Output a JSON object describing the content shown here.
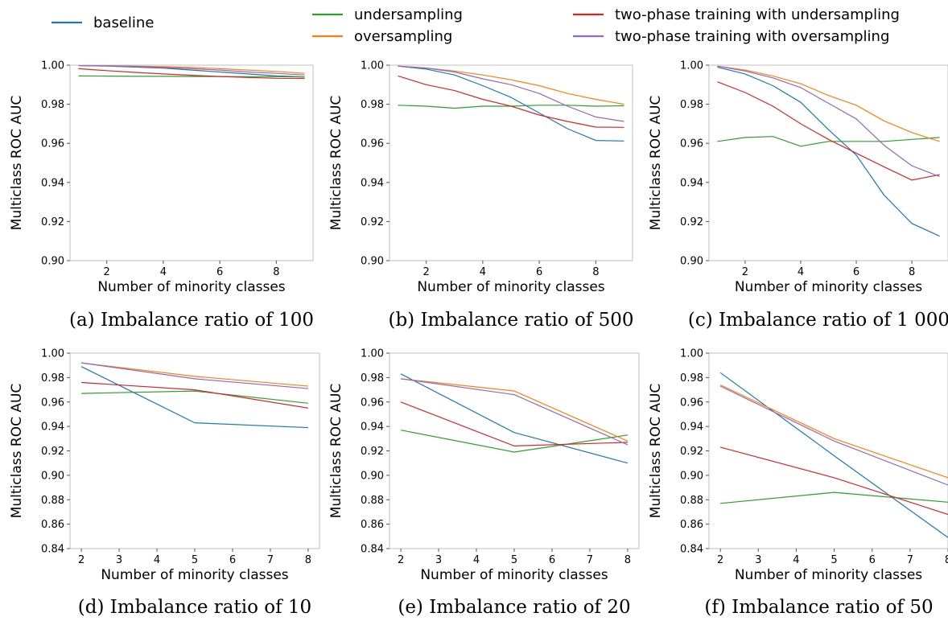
{
  "legend": {
    "entries": [
      {
        "label": "baseline",
        "color": "#1f77b4"
      },
      {
        "label": "undersampling",
        "color": "#2ca02c"
      },
      {
        "label": "oversampling",
        "color": "#ff7f0e"
      },
      {
        "label": "two-phase training with undersampling",
        "color": "#d62728"
      },
      {
        "label": "two-phase training with oversampling",
        "color": "#9467bd"
      }
    ]
  },
  "chart_data": [
    {
      "type": "line",
      "caption": "(a) Imbalance ratio of 100",
      "xlabel": "Number of minority classes",
      "ylabel": "Multiclass ROC AUC",
      "xlim": [
        0.7,
        9.3
      ],
      "ylim": [
        0.9,
        1.0
      ],
      "xticks": [
        2,
        4,
        6,
        8
      ],
      "xtick_labels": [
        "2",
        "4",
        "6",
        "8"
      ],
      "yticks": [
        0.9,
        0.92,
        0.94,
        0.96,
        0.98,
        1.0
      ],
      "ytick_labels": [
        "0.90",
        "0.92",
        "0.94",
        "0.96",
        "0.98",
        "1.00"
      ],
      "x": [
        1,
        2,
        3,
        4,
        5,
        6,
        7,
        8,
        9
      ],
      "series": [
        {
          "name": "baseline",
          "values": [
            0.9998,
            0.9995,
            0.999,
            0.9985,
            0.9975,
            0.9965,
            0.9955,
            0.9945,
            0.994
          ]
        },
        {
          "name": "undersampling",
          "values": [
            0.9945,
            0.9944,
            0.9943,
            0.9943,
            0.9942,
            0.9942,
            0.9941,
            0.9941,
            0.994
          ]
        },
        {
          "name": "oversampling",
          "values": [
            0.9998,
            0.9997,
            0.9995,
            0.9992,
            0.9988,
            0.9982,
            0.9975,
            0.9968,
            0.9958
          ]
        },
        {
          "name": "two-phase training with undersampling",
          "values": [
            0.9982,
            0.9972,
            0.9963,
            0.9955,
            0.9948,
            0.9942,
            0.9937,
            0.9933,
            0.9932
          ]
        },
        {
          "name": "two-phase training with oversampling",
          "values": [
            0.9998,
            0.9996,
            0.9993,
            0.9988,
            0.9982,
            0.9975,
            0.9965,
            0.9958,
            0.995
          ]
        }
      ]
    },
    {
      "type": "line",
      "caption": "(b) Imbalance ratio of 500",
      "xlabel": "Number of minority classes",
      "ylabel": "Multiclass ROC AUC",
      "xlim": [
        0.7,
        9.3
      ],
      "ylim": [
        0.9,
        1.0
      ],
      "xticks": [
        2,
        4,
        6,
        8
      ],
      "xtick_labels": [
        "2",
        "4",
        "6",
        "8"
      ],
      "yticks": [
        0.9,
        0.92,
        0.94,
        0.96,
        0.98,
        1.0
      ],
      "ytick_labels": [
        "0.90",
        "0.92",
        "0.94",
        "0.96",
        "0.98",
        "1.00"
      ],
      "x": [
        1,
        2,
        3,
        4,
        5,
        6,
        7,
        8,
        9
      ],
      "series": [
        {
          "name": "baseline",
          "values": [
            0.9995,
            0.998,
            0.995,
            0.9895,
            0.9835,
            0.9755,
            0.9675,
            0.9615,
            0.9612
          ]
        },
        {
          "name": "undersampling",
          "values": [
            0.9795,
            0.979,
            0.978,
            0.979,
            0.979,
            0.9795,
            0.9795,
            0.979,
            0.9792
          ]
        },
        {
          "name": "oversampling",
          "values": [
            0.9995,
            0.9985,
            0.997,
            0.995,
            0.9925,
            0.9895,
            0.9855,
            0.9825,
            0.98
          ]
        },
        {
          "name": "two-phase training with undersampling",
          "values": [
            0.9945,
            0.99,
            0.987,
            0.9825,
            0.979,
            0.9745,
            0.9712,
            0.9683,
            0.9682
          ]
        },
        {
          "name": "two-phase training with oversampling",
          "values": [
            0.9995,
            0.9985,
            0.9965,
            0.993,
            0.99,
            0.9855,
            0.979,
            0.9735,
            0.9712
          ]
        }
      ]
    },
    {
      "type": "line",
      "caption": "(c) Imbalance ratio of 1 000",
      "xlabel": "Number of minority classes",
      "ylabel": "Multiclass ROC AUC",
      "xlim": [
        0.7,
        9.3
      ],
      "ylim": [
        0.9,
        1.0
      ],
      "xticks": [
        2,
        4,
        6,
        8
      ],
      "xtick_labels": [
        "2",
        "4",
        "6",
        "8"
      ],
      "yticks": [
        0.9,
        0.92,
        0.94,
        0.96,
        0.98,
        1.0
      ],
      "ytick_labels": [
        "0.90",
        "0.92",
        "0.94",
        "0.96",
        "0.98",
        "1.00"
      ],
      "x": [
        1,
        2,
        3,
        4,
        5,
        6,
        7,
        8,
        9
      ],
      "series": [
        {
          "name": "baseline",
          "values": [
            0.999,
            0.9955,
            0.9895,
            0.981,
            0.967,
            0.954,
            0.9335,
            0.919,
            0.9125
          ]
        },
        {
          "name": "undersampling",
          "values": [
            0.961,
            0.963,
            0.9635,
            0.9585,
            0.961,
            0.961,
            0.961,
            0.962,
            0.963
          ]
        },
        {
          "name": "oversampling",
          "values": [
            0.9995,
            0.9975,
            0.9945,
            0.9905,
            0.9845,
            0.9795,
            0.9715,
            0.9655,
            0.961
          ]
        },
        {
          "name": "two-phase training with undersampling",
          "values": [
            0.9915,
            0.986,
            0.979,
            0.97,
            0.962,
            0.955,
            0.948,
            0.9412,
            0.944
          ]
        },
        {
          "name": "two-phase training with oversampling",
          "values": [
            0.9995,
            0.997,
            0.9935,
            0.9885,
            0.9805,
            0.9725,
            0.959,
            0.9485,
            0.943
          ]
        }
      ]
    },
    {
      "type": "line",
      "caption": "(d) Imbalance ratio of 10",
      "xlabel": "Number of minority classes",
      "ylabel": "Multiclass ROC AUC",
      "xlim": [
        1.7,
        8.3
      ],
      "ylim": [
        0.84,
        1.0
      ],
      "xticks": [
        2,
        3,
        4,
        5,
        6,
        7,
        8
      ],
      "xtick_labels": [
        "2",
        "3",
        "4",
        "5",
        "6",
        "7",
        "8"
      ],
      "yticks": [
        0.84,
        0.86,
        0.88,
        0.9,
        0.92,
        0.94,
        0.96,
        0.98,
        1.0
      ],
      "ytick_labels": [
        "0.84",
        "0.86",
        "0.88",
        "0.90",
        "0.92",
        "0.94",
        "0.96",
        "0.98",
        "1.00"
      ],
      "x": [
        2,
        5,
        8
      ],
      "series": [
        {
          "name": "baseline",
          "values": [
            0.989,
            0.943,
            0.939
          ]
        },
        {
          "name": "undersampling",
          "values": [
            0.967,
            0.969,
            0.959
          ]
        },
        {
          "name": "oversampling",
          "values": [
            0.992,
            0.981,
            0.973
          ]
        },
        {
          "name": "two-phase training with undersampling",
          "values": [
            0.976,
            0.97,
            0.955
          ]
        },
        {
          "name": "two-phase training with oversampling",
          "values": [
            0.992,
            0.979,
            0.971
          ]
        }
      ]
    },
    {
      "type": "line",
      "caption": "(e) Imbalance ratio of 20",
      "xlabel": "Number of minority classes",
      "ylabel": "Multiclass ROC AUC",
      "xlim": [
        1.7,
        8.3
      ],
      "ylim": [
        0.84,
        1.0
      ],
      "xticks": [
        2,
        3,
        4,
        5,
        6,
        7,
        8
      ],
      "xtick_labels": [
        "2",
        "3",
        "4",
        "5",
        "6",
        "7",
        "8"
      ],
      "yticks": [
        0.84,
        0.86,
        0.88,
        0.9,
        0.92,
        0.94,
        0.96,
        0.98,
        1.0
      ],
      "ytick_labels": [
        "0.84",
        "0.86",
        "0.88",
        "0.90",
        "0.92",
        "0.94",
        "0.96",
        "0.98",
        "1.00"
      ],
      "x": [
        2,
        5,
        8
      ],
      "series": [
        {
          "name": "baseline",
          "values": [
            0.983,
            0.935,
            0.91
          ]
        },
        {
          "name": "undersampling",
          "values": [
            0.937,
            0.919,
            0.933
          ]
        },
        {
          "name": "oversampling",
          "values": [
            0.979,
            0.969,
            0.928
          ]
        },
        {
          "name": "two-phase training with undersampling",
          "values": [
            0.96,
            0.924,
            0.927
          ]
        },
        {
          "name": "two-phase training with oversampling",
          "values": [
            0.979,
            0.966,
            0.925
          ]
        }
      ]
    },
    {
      "type": "line",
      "caption": "(f) Imbalance ratio of 50",
      "xlabel": "Number of minority classes",
      "ylabel": "Multiclass ROC AUC",
      "xlim": [
        1.7,
        8.0
      ],
      "ylim": [
        0.84,
        1.0
      ],
      "xticks": [
        2,
        3,
        4,
        5,
        6,
        7,
        8
      ],
      "xtick_labels": [
        "2",
        "3",
        "4",
        "5",
        "6",
        "7",
        "8"
      ],
      "yticks": [
        0.84,
        0.86,
        0.88,
        0.9,
        0.92,
        0.94,
        0.96,
        0.98,
        1.0
      ],
      "ytick_labels": [
        "0.84",
        "0.86",
        "0.88",
        "0.90",
        "0.92",
        "0.94",
        "0.96",
        "0.98",
        "1.00"
      ],
      "x": [
        2,
        5,
        8
      ],
      "series": [
        {
          "name": "baseline",
          "values": [
            0.984,
            0.916,
            0.849
          ]
        },
        {
          "name": "undersampling",
          "values": [
            0.877,
            0.886,
            0.878
          ]
        },
        {
          "name": "oversampling",
          "values": [
            0.974,
            0.93,
            0.898
          ]
        },
        {
          "name": "two-phase training with undersampling",
          "values": [
            0.923,
            0.898,
            0.868
          ]
        },
        {
          "name": "two-phase training with oversampling",
          "values": [
            0.973,
            0.928,
            0.892
          ]
        }
      ]
    }
  ]
}
